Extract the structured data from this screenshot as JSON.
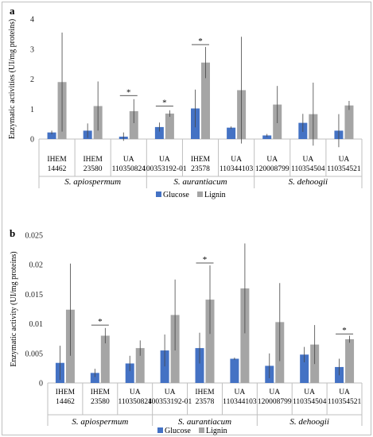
{
  "chart_data": [
    {
      "panel": "a",
      "type": "bar",
      "ylabel": "Enzymatic activities (UI/mg proteins)",
      "ylim": [
        0,
        4
      ],
      "yticks": [
        "0",
        "1",
        "2",
        "3",
        "4"
      ],
      "ytick_values": [
        0,
        1,
        2,
        3,
        4
      ],
      "grid": false,
      "legend_position": "bottom-center",
      "categories": [
        {
          "line1": "IHEM",
          "line2": "14462",
          "group": 0
        },
        {
          "line1": "IHEM",
          "line2": "23580",
          "group": 0
        },
        {
          "line1": "UA",
          "line2": "110350824",
          "group": 0
        },
        {
          "line1": "UA",
          "line2": "100353192-01",
          "group": 1
        },
        {
          "line1": "IHEM",
          "line2": "23578",
          "group": 1
        },
        {
          "line1": "UA",
          "line2": "110344103",
          "group": 1
        },
        {
          "line1": "UA",
          "line2": "120008799",
          "group": 2
        },
        {
          "line1": "UA",
          "line2": "110354504",
          "group": 2
        },
        {
          "line1": "UA",
          "line2": "110354521",
          "group": 2
        }
      ],
      "groups": [
        "S. apiospermum",
        "S. aurantiacum",
        "S. dehoogii"
      ],
      "series": [
        {
          "name": "Glucose",
          "color": "#4472c4",
          "values": [
            0.22,
            0.28,
            0.08,
            0.4,
            1.02,
            0.38,
            0.12,
            0.54,
            0.28
          ],
          "errors": [
            0.06,
            0.24,
            0.14,
            0.15,
            0.63,
            0.04,
            0.05,
            0.3,
            0.55
          ]
        },
        {
          "name": "Lignin",
          "color": "#a5a5a5",
          "values": [
            1.9,
            1.1,
            0.93,
            0.85,
            2.55,
            1.63,
            1.15,
            0.83,
            1.12
          ],
          "errors": [
            1.65,
            0.82,
            0.4,
            0.11,
            0.52,
            1.78,
            0.62,
            1.05,
            0.15
          ]
        }
      ],
      "significance": [
        2,
        3,
        4
      ]
    },
    {
      "panel": "b",
      "type": "bar",
      "ylabel": "Enzymatic activity (UI/mg proteins)",
      "ylim": [
        0,
        0.025
      ],
      "yticks": [
        "0",
        "0.005",
        "0.01",
        "0.015",
        "0.02",
        "0.025"
      ],
      "ytick_values": [
        0,
        0.005,
        0.01,
        0.015,
        0.02,
        0.025
      ],
      "grid": false,
      "legend_position": "bottom-center",
      "categories": [
        {
          "line1": "IHEM",
          "line2": "14462",
          "group": 0
        },
        {
          "line1": "IHEM",
          "line2": "23580",
          "group": 0
        },
        {
          "line1": "UA",
          "line2": "110350824",
          "group": 0
        },
        {
          "line1": "UA",
          "line2": "100353192-01",
          "group": 1
        },
        {
          "line1": "IHEM",
          "line2": "23578",
          "group": 1
        },
        {
          "line1": "UA",
          "line2": "110344103",
          "group": 1
        },
        {
          "line1": "UA",
          "line2": "120008799",
          "group": 2
        },
        {
          "line1": "UA",
          "line2": "110354504",
          "group": 2
        },
        {
          "line1": "UA",
          "line2": "110354521",
          "group": 2
        }
      ],
      "groups": [
        "S. apiospermum",
        "S. aurantiacum",
        "S. dehoogii"
      ],
      "series": [
        {
          "name": "Glucose",
          "color": "#4472c4",
          "values": [
            0.0034,
            0.0017,
            0.0033,
            0.0055,
            0.0059,
            0.0041,
            0.0029,
            0.0048,
            0.0027
          ],
          "errors": [
            0.0029,
            0.0007,
            0.0013,
            0.0027,
            0.0026,
            0.0002,
            0.0021,
            0.0013,
            0.0014
          ]
        },
        {
          "name": "Lignin",
          "color": "#a5a5a5",
          "values": [
            0.0124,
            0.008,
            0.0059,
            0.0115,
            0.0141,
            0.016,
            0.0103,
            0.0065,
            0.0074
          ],
          "errors": [
            0.0078,
            0.0013,
            0.0013,
            0.006,
            0.0058,
            0.0076,
            0.0066,
            0.0033,
            0.0006
          ]
        }
      ],
      "significance": [
        1,
        4,
        8
      ]
    }
  ],
  "legend": {
    "glucose": "Glucose",
    "lignin": "Lignin"
  },
  "significance_marker": "*"
}
